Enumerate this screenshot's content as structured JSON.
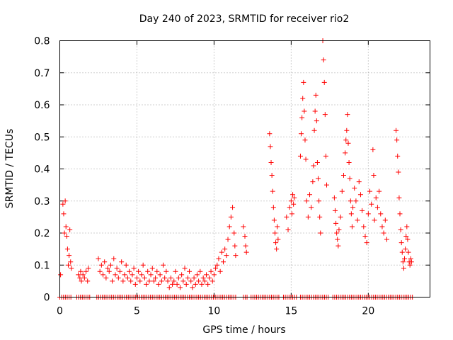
{
  "chart_data": {
    "type": "scatter",
    "title": "Day 240 of 2023, SRMTID for receiver rio2",
    "xlabel": "GPS time / hours",
    "ylabel": "SRMTID / TECUs",
    "xlim": [
      0,
      24
    ],
    "ylim": [
      0,
      0.8
    ],
    "xticks": [
      0,
      5,
      10,
      15,
      20
    ],
    "xtick_labels": [
      "0",
      "5",
      "10",
      "15",
      "20"
    ],
    "yticks": [
      0,
      0.1,
      0.2,
      0.3,
      0.4,
      0.5,
      0.6,
      0.7,
      0.8
    ],
    "ytick_labels": [
      "0",
      "0.1",
      "0.2",
      "0.3",
      "0.4",
      "0.5",
      "0.6",
      "0.7",
      "0.8"
    ],
    "grid": true,
    "marker": "plus",
    "color": "#ff0000",
    "series": [
      {
        "name": "SRMTID",
        "points": [
          [
            0.05,
            0.07
          ],
          [
            0.2,
            0.29
          ],
          [
            0.25,
            0.26
          ],
          [
            0.3,
            0.2
          ],
          [
            0.35,
            0.3
          ],
          [
            0.4,
            0.22
          ],
          [
            0.45,
            0.19
          ],
          [
            0.5,
            0.15
          ],
          [
            0.55,
            0.1
          ],
          [
            0.6,
            0.13
          ],
          [
            0.65,
            0.21
          ],
          [
            0.7,
            0.11
          ],
          [
            0.75,
            0.09
          ],
          [
            1.2,
            0.07
          ],
          [
            1.3,
            0.06
          ],
          [
            1.35,
            0.08
          ],
          [
            1.4,
            0.05
          ],
          [
            1.5,
            0.07
          ],
          [
            1.6,
            0.06
          ],
          [
            1.7,
            0.08
          ],
          [
            1.8,
            0.05
          ],
          [
            1.85,
            0.09
          ],
          [
            2.5,
            0.12
          ],
          [
            2.6,
            0.08
          ],
          [
            2.7,
            0.1
          ],
          [
            2.8,
            0.07
          ],
          [
            2.9,
            0.11
          ],
          [
            3.0,
            0.06
          ],
          [
            3.1,
            0.09
          ],
          [
            3.2,
            0.08
          ],
          [
            3.3,
            0.1
          ],
          [
            3.4,
            0.05
          ],
          [
            3.5,
            0.12
          ],
          [
            3.6,
            0.07
          ],
          [
            3.7,
            0.09
          ],
          [
            3.8,
            0.06
          ],
          [
            3.9,
            0.08
          ],
          [
            4.0,
            0.11
          ],
          [
            4.1,
            0.05
          ],
          [
            4.2,
            0.07
          ],
          [
            4.3,
            0.1
          ],
          [
            4.4,
            0.06
          ],
          [
            4.5,
            0.08
          ],
          [
            4.6,
            0.05
          ],
          [
            4.7,
            0.07
          ],
          [
            4.8,
            0.09
          ],
          [
            4.9,
            0.04
          ],
          [
            5.0,
            0.06
          ],
          [
            5.1,
            0.08
          ],
          [
            5.2,
            0.05
          ],
          [
            5.3,
            0.07
          ],
          [
            5.4,
            0.1
          ],
          [
            5.5,
            0.06
          ],
          [
            5.6,
            0.04
          ],
          [
            5.7,
            0.08
          ],
          [
            5.8,
            0.05
          ],
          [
            5.9,
            0.07
          ],
          [
            6.0,
            0.09
          ],
          [
            6.1,
            0.05
          ],
          [
            6.2,
            0.06
          ],
          [
            6.3,
            0.08
          ],
          [
            6.4,
            0.04
          ],
          [
            6.5,
            0.07
          ],
          [
            6.6,
            0.05
          ],
          [
            6.7,
            0.1
          ],
          [
            6.8,
            0.06
          ],
          [
            6.9,
            0.08
          ],
          [
            7.0,
            0.05
          ],
          [
            7.1,
            0.03
          ],
          [
            7.2,
            0.06
          ],
          [
            7.3,
            0.04
          ],
          [
            7.4,
            0.05
          ],
          [
            7.5,
            0.08
          ],
          [
            7.6,
            0.04
          ],
          [
            7.7,
            0.06
          ],
          [
            7.8,
            0.03
          ],
          [
            7.9,
            0.07
          ],
          [
            8.0,
            0.05
          ],
          [
            8.1,
            0.09
          ],
          [
            8.2,
            0.04
          ],
          [
            8.3,
            0.06
          ],
          [
            8.4,
            0.08
          ],
          [
            8.5,
            0.05
          ],
          [
            8.6,
            0.03
          ],
          [
            8.7,
            0.06
          ],
          [
            8.8,
            0.04
          ],
          [
            8.9,
            0.07
          ],
          [
            9.0,
            0.05
          ],
          [
            9.1,
            0.08
          ],
          [
            9.2,
            0.04
          ],
          [
            9.3,
            0.06
          ],
          [
            9.4,
            0.05
          ],
          [
            9.5,
            0.07
          ],
          [
            9.6,
            0.04
          ],
          [
            9.7,
            0.06
          ],
          [
            9.8,
            0.08
          ],
          [
            9.9,
            0.05
          ],
          [
            10.0,
            0.07
          ],
          [
            10.1,
            0.09
          ],
          [
            10.2,
            0.1
          ],
          [
            10.3,
            0.12
          ],
          [
            10.4,
            0.08
          ],
          [
            10.5,
            0.14
          ],
          [
            10.6,
            0.11
          ],
          [
            10.7,
            0.15
          ],
          [
            10.8,
            0.13
          ],
          [
            10.9,
            0.18
          ],
          [
            11.0,
            0.22
          ],
          [
            11.1,
            0.25
          ],
          [
            11.2,
            0.28
          ],
          [
            11.3,
            0.2
          ],
          [
            11.35,
            0.16
          ],
          [
            11.4,
            0.13
          ],
          [
            11.9,
            0.22
          ],
          [
            12.0,
            0.19
          ],
          [
            12.05,
            0.16
          ],
          [
            12.1,
            0.14
          ],
          [
            13.6,
            0.51
          ],
          [
            13.65,
            0.47
          ],
          [
            13.7,
            0.42
          ],
          [
            13.75,
            0.38
          ],
          [
            13.8,
            0.33
          ],
          [
            13.85,
            0.28
          ],
          [
            13.9,
            0.24
          ],
          [
            13.95,
            0.2
          ],
          [
            14.0,
            0.17
          ],
          [
            14.05,
            0.15
          ],
          [
            14.1,
            0.22
          ],
          [
            14.15,
            0.18
          ],
          [
            14.7,
            0.25
          ],
          [
            14.8,
            0.21
          ],
          [
            14.9,
            0.28
          ],
          [
            15.0,
            0.3
          ],
          [
            15.05,
            0.26
          ],
          [
            15.1,
            0.32
          ],
          [
            15.15,
            0.29
          ],
          [
            15.2,
            0.31
          ],
          [
            15.6,
            0.44
          ],
          [
            15.65,
            0.51
          ],
          [
            15.7,
            0.56
          ],
          [
            15.75,
            0.62
          ],
          [
            15.8,
            0.67
          ],
          [
            15.85,
            0.58
          ],
          [
            15.9,
            0.49
          ],
          [
            15.95,
            0.43
          ],
          [
            16.0,
            0.3
          ],
          [
            16.1,
            0.25
          ],
          [
            16.2,
            0.32
          ],
          [
            16.3,
            0.28
          ],
          [
            16.4,
            0.36
          ],
          [
            16.45,
            0.41
          ],
          [
            16.5,
            0.52
          ],
          [
            16.55,
            0.58
          ],
          [
            16.6,
            0.63
          ],
          [
            16.65,
            0.55
          ],
          [
            16.7,
            0.42
          ],
          [
            16.75,
            0.37
          ],
          [
            16.8,
            0.3
          ],
          [
            16.85,
            0.25
          ],
          [
            16.9,
            0.2
          ],
          [
            17.05,
            0.8
          ],
          [
            17.1,
            0.74
          ],
          [
            17.15,
            0.67
          ],
          [
            17.2,
            0.57
          ],
          [
            17.25,
            0.44
          ],
          [
            17.3,
            0.35
          ],
          [
            17.8,
            0.31
          ],
          [
            17.85,
            0.27
          ],
          [
            17.9,
            0.23
          ],
          [
            17.95,
            0.2
          ],
          [
            18.0,
            0.18
          ],
          [
            18.05,
            0.16
          ],
          [
            18.1,
            0.21
          ],
          [
            18.2,
            0.25
          ],
          [
            18.3,
            0.33
          ],
          [
            18.4,
            0.38
          ],
          [
            18.5,
            0.45
          ],
          [
            18.55,
            0.49
          ],
          [
            18.6,
            0.52
          ],
          [
            18.65,
            0.57
          ],
          [
            18.7,
            0.48
          ],
          [
            18.75,
            0.42
          ],
          [
            18.8,
            0.37
          ],
          [
            18.85,
            0.3
          ],
          [
            18.9,
            0.26
          ],
          [
            18.95,
            0.22
          ],
          [
            19.0,
            0.28
          ],
          [
            19.1,
            0.34
          ],
          [
            19.2,
            0.3
          ],
          [
            19.3,
            0.24
          ],
          [
            19.4,
            0.36
          ],
          [
            19.5,
            0.32
          ],
          [
            19.6,
            0.27
          ],
          [
            19.7,
            0.22
          ],
          [
            19.8,
            0.19
          ],
          [
            19.9,
            0.17
          ],
          [
            20.0,
            0.26
          ],
          [
            20.1,
            0.33
          ],
          [
            20.2,
            0.29
          ],
          [
            20.3,
            0.46
          ],
          [
            20.35,
            0.38
          ],
          [
            20.4,
            0.24
          ],
          [
            20.5,
            0.31
          ],
          [
            20.6,
            0.28
          ],
          [
            20.7,
            0.33
          ],
          [
            20.8,
            0.26
          ],
          [
            20.9,
            0.22
          ],
          [
            21.0,
            0.2
          ],
          [
            21.1,
            0.24
          ],
          [
            21.2,
            0.18
          ],
          [
            21.8,
            0.52
          ],
          [
            21.85,
            0.49
          ],
          [
            21.9,
            0.44
          ],
          [
            21.95,
            0.39
          ],
          [
            22.0,
            0.31
          ],
          [
            22.05,
            0.26
          ],
          [
            22.1,
            0.21
          ],
          [
            22.15,
            0.17
          ],
          [
            22.2,
            0.14
          ],
          [
            22.25,
            0.11
          ],
          [
            22.3,
            0.09
          ],
          [
            22.35,
            0.12
          ],
          [
            22.4,
            0.15
          ],
          [
            22.45,
            0.19
          ],
          [
            22.5,
            0.22
          ],
          [
            22.55,
            0.18
          ],
          [
            22.6,
            0.14
          ],
          [
            22.65,
            0.11
          ],
          [
            22.7,
            0.1
          ],
          [
            22.75,
            0.12
          ],
          [
            22.8,
            0.11
          ]
        ]
      }
    ],
    "zero_segments": [
      [
        0,
        0.8
      ],
      [
        1.1,
        2.0
      ],
      [
        2.4,
        11.5
      ],
      [
        11.9,
        12.2
      ],
      [
        12.4,
        13.5
      ],
      [
        13.6,
        14.3
      ],
      [
        14.5,
        15.4
      ],
      [
        15.6,
        17.5
      ],
      [
        17.7,
        22.9
      ]
    ]
  }
}
